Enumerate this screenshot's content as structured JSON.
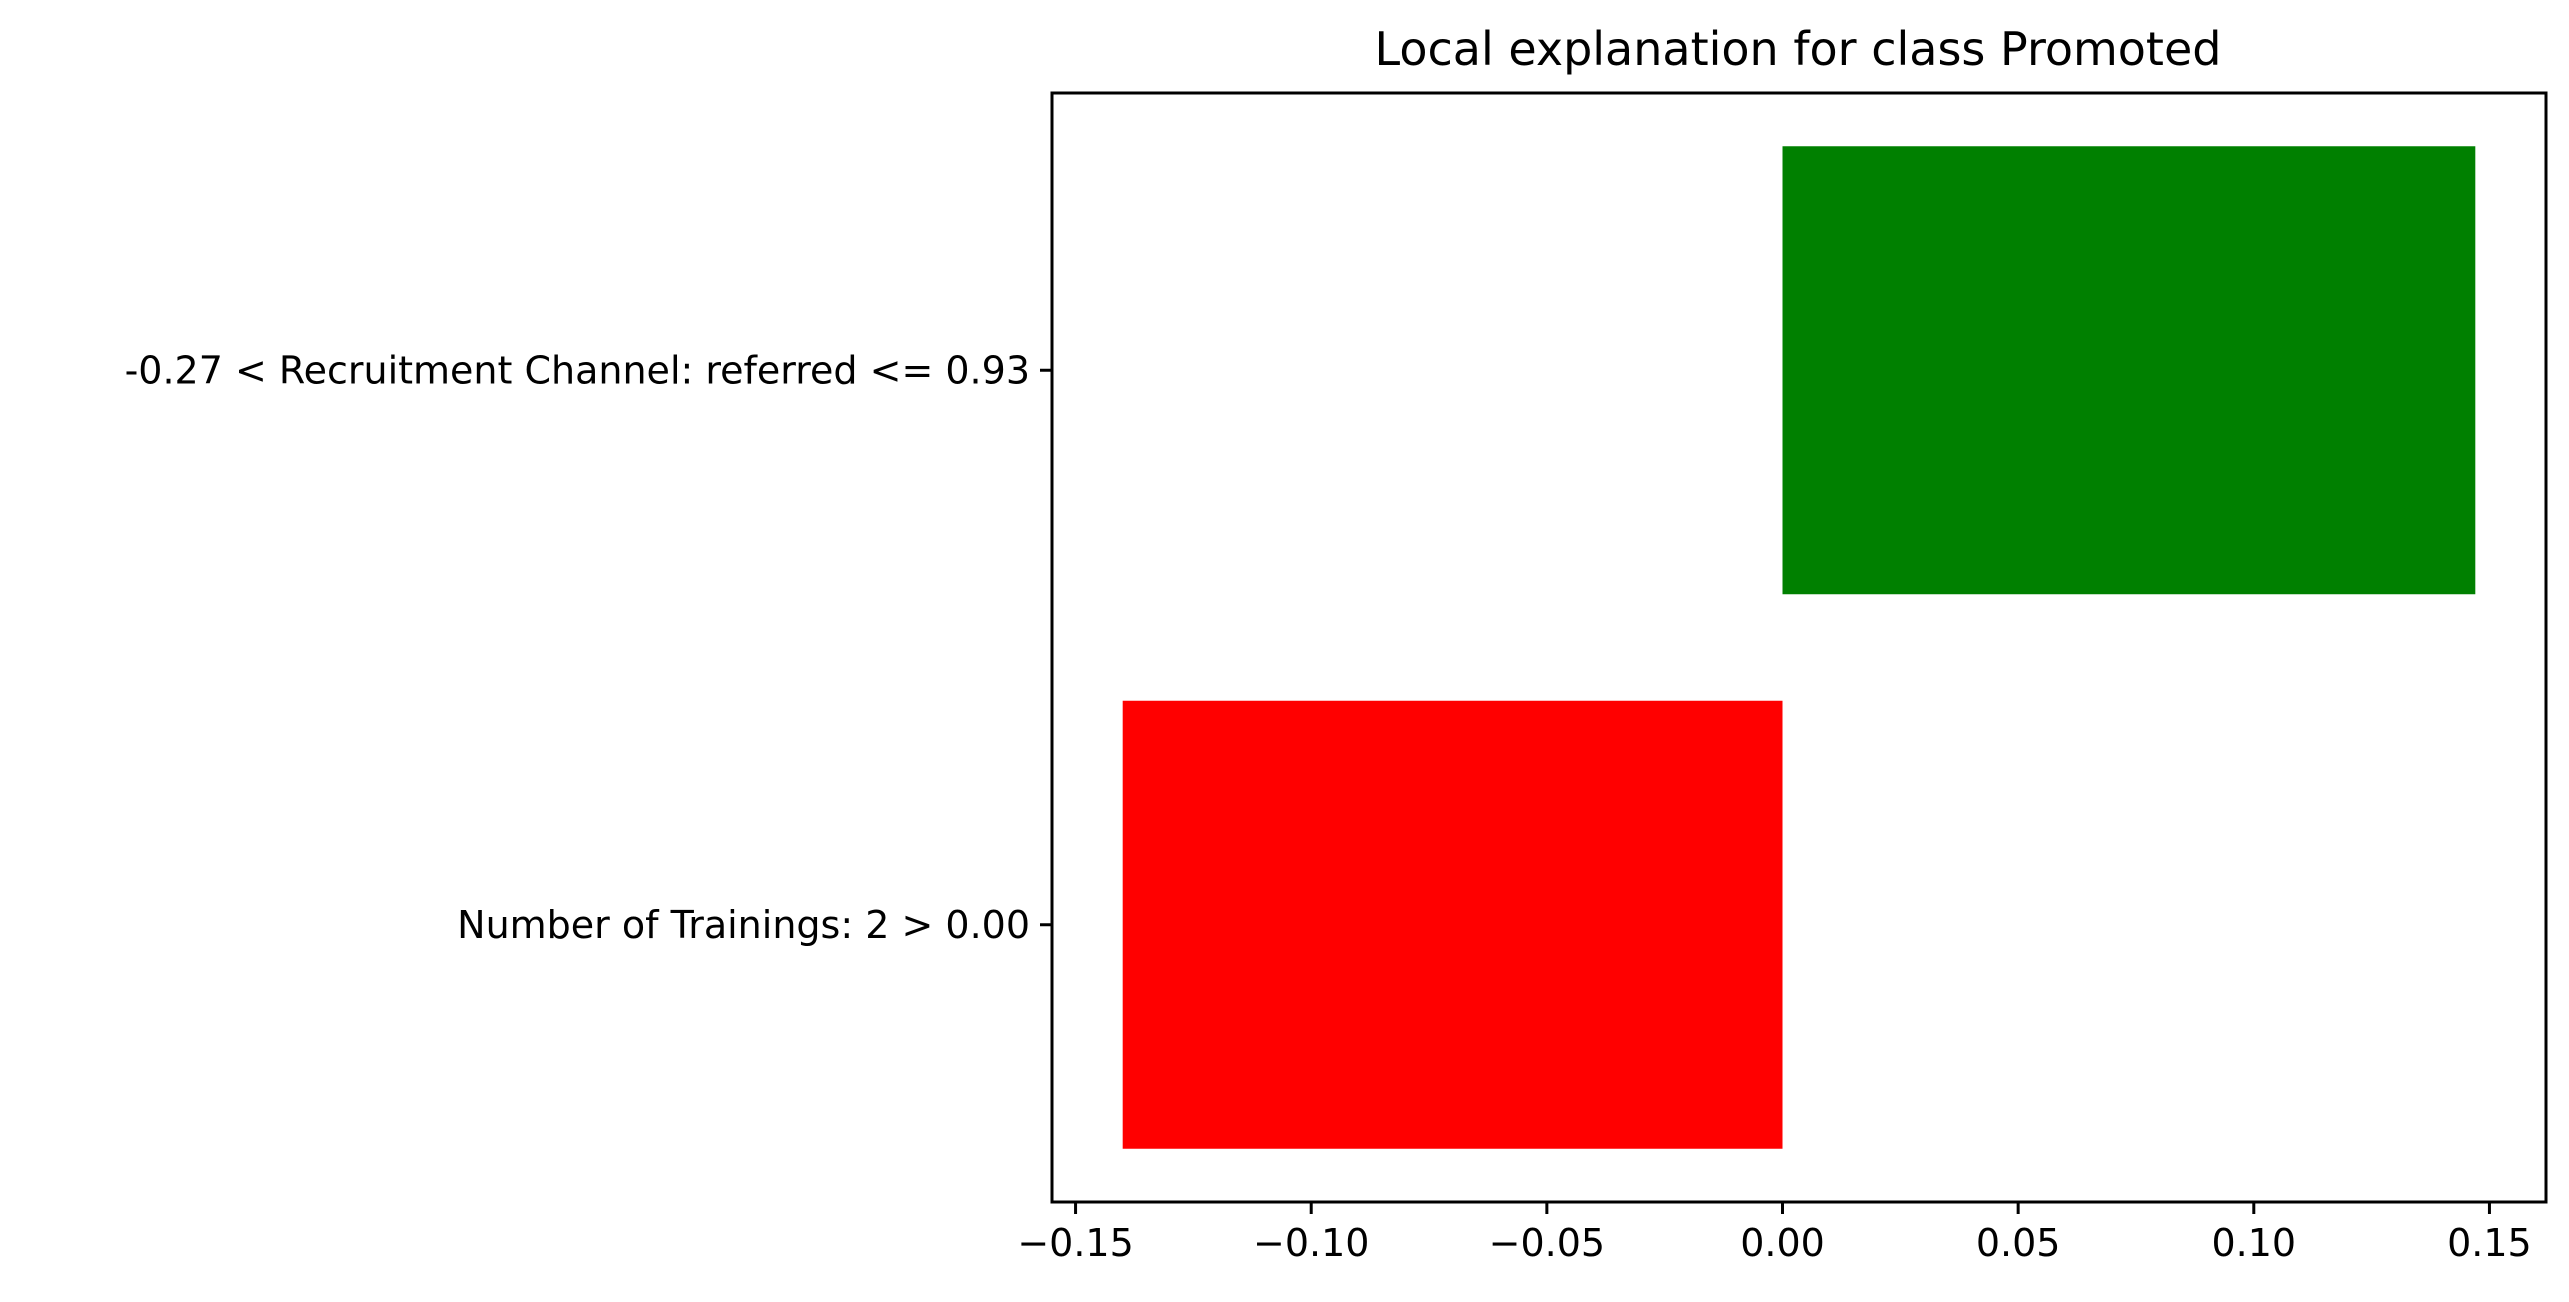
{
  "chart_data": {
    "type": "bar",
    "orientation": "horizontal",
    "title": "Local explanation for class Promoted",
    "xlabel": "",
    "ylabel": "",
    "categories": [
      "-0.27 < Recruitment Channel: referred <= 0.93",
      "Number of Trainings: 2 > 0.00"
    ],
    "values": [
      0.147,
      -0.14
    ],
    "colors": [
      "#008000",
      "#ff0000"
    ],
    "xlim": [
      -0.155,
      0.162
    ],
    "xticks": [
      -0.15,
      -0.1,
      -0.05,
      0.0,
      0.05,
      0.1,
      0.15
    ],
    "xtick_labels": [
      "−0.15",
      "−0.10",
      "−0.05",
      "0.00",
      "0.05",
      "0.10",
      "0.15"
    ],
    "grid": false,
    "legend": "none"
  }
}
